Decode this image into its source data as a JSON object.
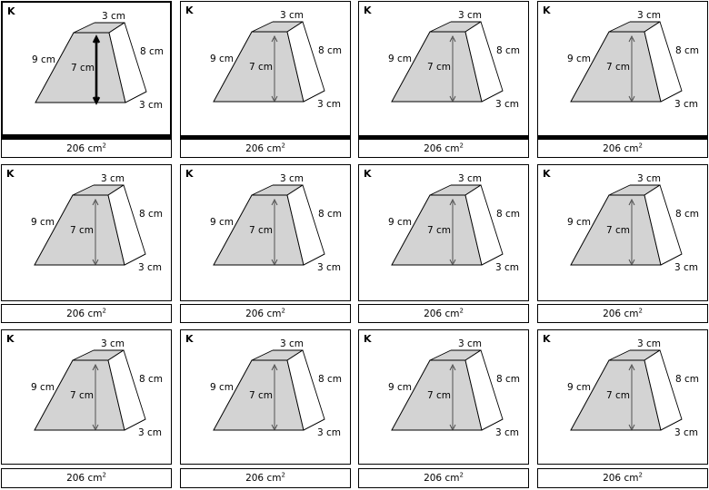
{
  "cards": [
    {
      "label": "K",
      "dims": {
        "top": "3 cm",
        "side": "8 cm",
        "slant": "9 cm",
        "height": "7 cm",
        "depth": "3 cm"
      },
      "answer": "206",
      "unit": "cm",
      "unit_power": "2"
    },
    {
      "label": "K",
      "dims": {
        "top": "3 cm",
        "side": "8 cm",
        "slant": "9 cm",
        "height": "7 cm",
        "depth": "3 cm"
      },
      "answer": "206",
      "unit": "cm",
      "unit_power": "2"
    },
    {
      "label": "K",
      "dims": {
        "top": "3 cm",
        "side": "8 cm",
        "slant": "9 cm",
        "height": "7 cm",
        "depth": "3 cm"
      },
      "answer": "206",
      "unit": "cm",
      "unit_power": "2"
    },
    {
      "label": "K",
      "dims": {
        "top": "3 cm",
        "side": "8 cm",
        "slant": "9 cm",
        "height": "7 cm",
        "depth": "3 cm"
      },
      "answer": "206",
      "unit": "cm",
      "unit_power": "2"
    },
    {
      "label": "K",
      "dims": {
        "top": "3 cm",
        "side": "8 cm",
        "slant": "9 cm",
        "height": "7 cm",
        "depth": "3 cm"
      },
      "answer": "206",
      "unit": "cm",
      "unit_power": "2"
    },
    {
      "label": "K",
      "dims": {
        "top": "3 cm",
        "side": "8 cm",
        "slant": "9 cm",
        "height": "7 cm",
        "depth": "3 cm"
      },
      "answer": "206",
      "unit": "cm",
      "unit_power": "2"
    },
    {
      "label": "K",
      "dims": {
        "top": "3 cm",
        "side": "8 cm",
        "slant": "9 cm",
        "height": "7 cm",
        "depth": "3 cm"
      },
      "answer": "206",
      "unit": "cm",
      "unit_power": "2"
    },
    {
      "label": "K",
      "dims": {
        "top": "3 cm",
        "side": "8 cm",
        "slant": "9 cm",
        "height": "7 cm",
        "depth": "3 cm"
      },
      "answer": "206",
      "unit": "cm",
      "unit_power": "2"
    },
    {
      "label": "K",
      "dims": {
        "top": "3 cm",
        "side": "8 cm",
        "slant": "9 cm",
        "height": "7 cm",
        "depth": "3 cm"
      },
      "answer": "206",
      "unit": "cm",
      "unit_power": "2"
    },
    {
      "label": "K",
      "dims": {
        "top": "3 cm",
        "side": "8 cm",
        "slant": "9 cm",
        "height": "7 cm",
        "depth": "3 cm"
      },
      "answer": "206",
      "unit": "cm",
      "unit_power": "2"
    },
    {
      "label": "K",
      "dims": {
        "top": "3 cm",
        "side": "8 cm",
        "slant": "9 cm",
        "height": "7 cm",
        "depth": "3 cm"
      },
      "answer": "206",
      "unit": "cm",
      "unit_power": "2"
    },
    {
      "label": "K",
      "dims": {
        "top": "3 cm",
        "side": "8 cm",
        "slant": "9 cm",
        "height": "7 cm",
        "depth": "3 cm"
      },
      "answer": "206",
      "unit": "cm",
      "unit_power": "2"
    }
  ],
  "colors": {
    "face_fill": "#d3d3d3",
    "outline": "#000000",
    "background": "#ffffff"
  }
}
